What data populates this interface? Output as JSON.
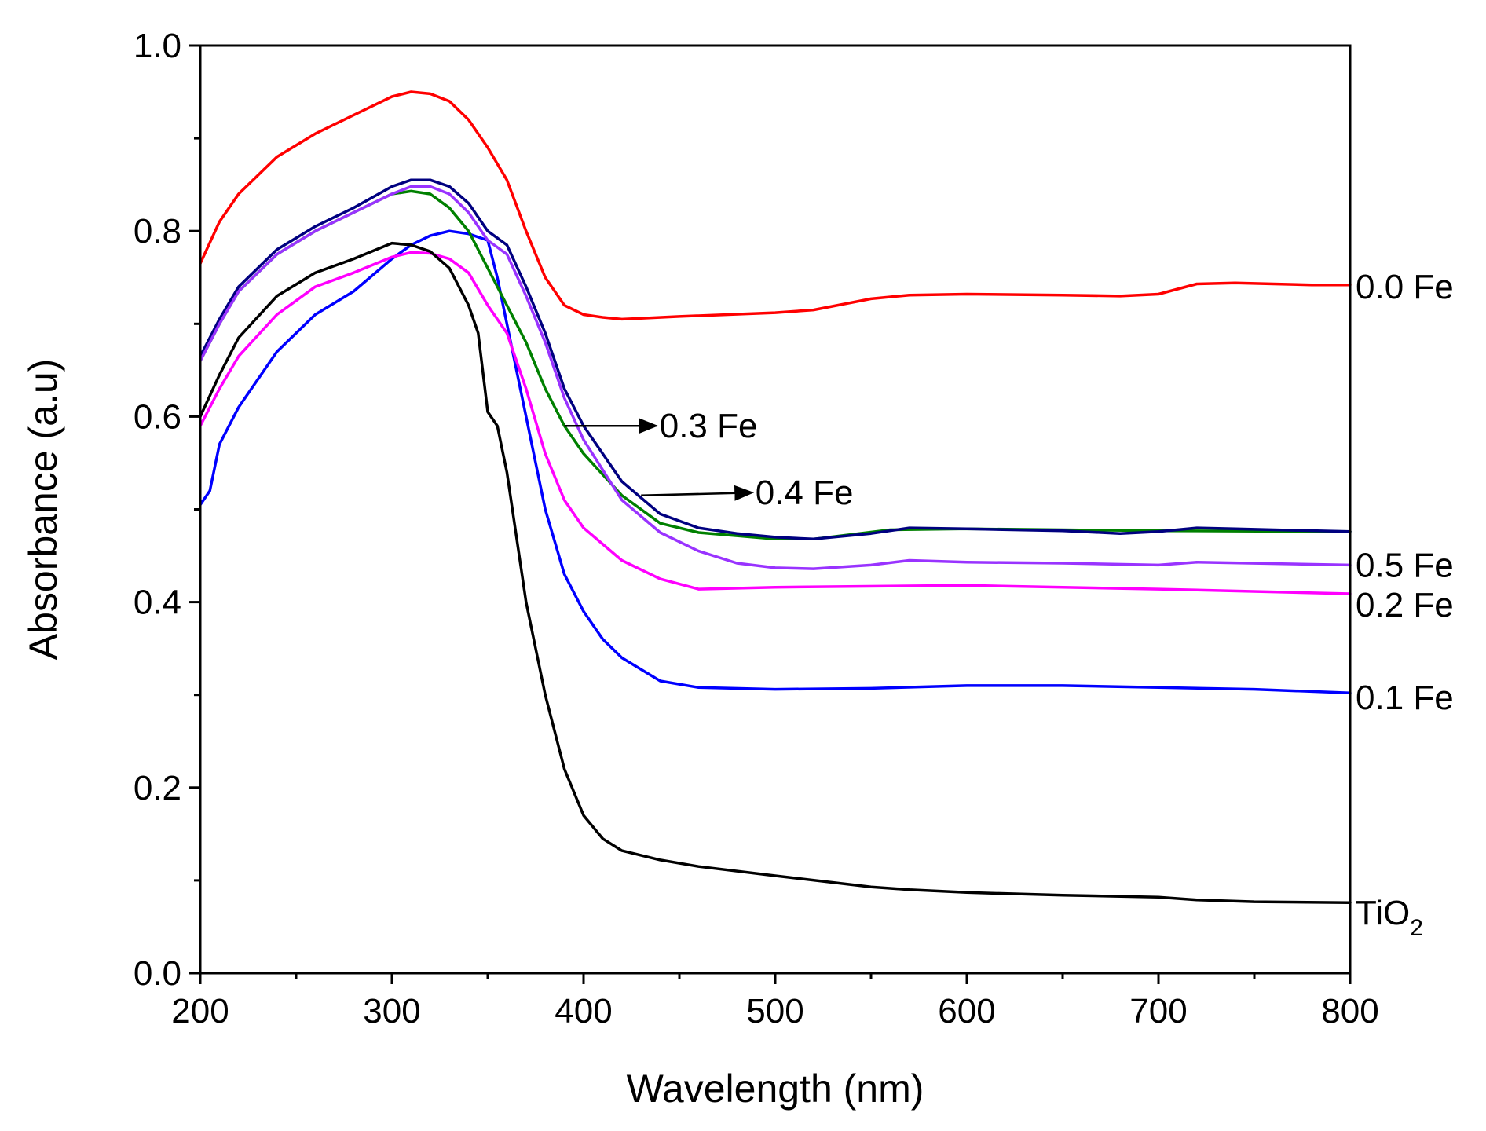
{
  "chart_data": {
    "type": "line",
    "title": "",
    "xlabel": "Wavelength (nm)",
    "ylabel": "Absorbance (a.u)",
    "xlim": [
      200,
      800
    ],
    "ylim": [
      0.0,
      1.0
    ],
    "x_ticks": [
      200,
      300,
      400,
      500,
      600,
      700,
      800
    ],
    "x_tick_labels": [
      "200",
      "300",
      "400",
      "500",
      "600",
      "700",
      "800"
    ],
    "y_ticks": [
      0.0,
      0.2,
      0.4,
      0.6,
      0.8,
      1.0
    ],
    "y_tick_labels": [
      "0.0",
      "0.2",
      "0.4",
      "0.6",
      "0.8",
      "1.0"
    ],
    "grid": false,
    "series": [
      {
        "name": "0.0 Fe",
        "color": "#ff0000",
        "x": [
          200,
          210,
          220,
          240,
          260,
          280,
          300,
          310,
          320,
          330,
          340,
          350,
          360,
          370,
          380,
          390,
          400,
          410,
          420,
          430,
          450,
          500,
          520,
          550,
          570,
          600,
          650,
          680,
          700,
          720,
          740,
          760,
          780,
          800
        ],
        "values": [
          0.765,
          0.81,
          0.84,
          0.88,
          0.905,
          0.925,
          0.945,
          0.95,
          0.948,
          0.94,
          0.92,
          0.89,
          0.855,
          0.8,
          0.75,
          0.72,
          0.71,
          0.707,
          0.705,
          0.706,
          0.708,
          0.712,
          0.715,
          0.727,
          0.731,
          0.732,
          0.731,
          0.73,
          0.732,
          0.743,
          0.744,
          0.743,
          0.742,
          0.742
        ]
      },
      {
        "name": "0.1 Fe",
        "color": "#0000ff",
        "x": [
          200,
          205,
          210,
          220,
          240,
          260,
          280,
          300,
          310,
          320,
          330,
          340,
          350,
          355,
          360,
          370,
          380,
          390,
          400,
          410,
          420,
          440,
          460,
          500,
          550,
          600,
          650,
          700,
          750,
          800
        ],
        "values": [
          0.505,
          0.52,
          0.57,
          0.61,
          0.67,
          0.71,
          0.735,
          0.77,
          0.785,
          0.795,
          0.8,
          0.797,
          0.79,
          0.75,
          0.7,
          0.6,
          0.5,
          0.43,
          0.39,
          0.36,
          0.34,
          0.315,
          0.308,
          0.306,
          0.307,
          0.31,
          0.31,
          0.308,
          0.306,
          0.302
        ]
      },
      {
        "name": "0.2 Fe",
        "color": "#ff00ff",
        "x": [
          200,
          210,
          220,
          240,
          260,
          280,
          300,
          310,
          320,
          330,
          340,
          350,
          360,
          370,
          380,
          390,
          400,
          420,
          440,
          460,
          500,
          600,
          700,
          800
        ],
        "values": [
          0.59,
          0.63,
          0.665,
          0.71,
          0.74,
          0.755,
          0.772,
          0.777,
          0.776,
          0.77,
          0.755,
          0.72,
          0.69,
          0.63,
          0.56,
          0.51,
          0.48,
          0.445,
          0.425,
          0.414,
          0.416,
          0.418,
          0.414,
          0.409
        ]
      },
      {
        "name": "0.3 Fe",
        "color": "#008000",
        "x": [
          200,
          210,
          220,
          240,
          260,
          280,
          300,
          310,
          320,
          330,
          340,
          350,
          360,
          370,
          380,
          390,
          400,
          420,
          440,
          460,
          500,
          520,
          560,
          600,
          700,
          800
        ],
        "values": [
          0.66,
          0.7,
          0.735,
          0.775,
          0.8,
          0.82,
          0.84,
          0.843,
          0.84,
          0.825,
          0.8,
          0.76,
          0.72,
          0.68,
          0.63,
          0.59,
          0.56,
          0.515,
          0.485,
          0.475,
          0.468,
          0.468,
          0.478,
          0.479,
          0.477,
          0.476
        ]
      },
      {
        "name": "0.4 Fe",
        "color": "#000080",
        "x": [
          200,
          210,
          220,
          240,
          260,
          280,
          300,
          310,
          320,
          330,
          340,
          350,
          360,
          370,
          380,
          390,
          400,
          420,
          440,
          460,
          480,
          500,
          520,
          550,
          570,
          600,
          650,
          680,
          700,
          720,
          740,
          800
        ],
        "values": [
          0.665,
          0.705,
          0.74,
          0.78,
          0.805,
          0.825,
          0.848,
          0.855,
          0.855,
          0.848,
          0.83,
          0.8,
          0.785,
          0.74,
          0.69,
          0.63,
          0.59,
          0.53,
          0.495,
          0.48,
          0.474,
          0.47,
          0.468,
          0.474,
          0.48,
          0.479,
          0.477,
          0.474,
          0.476,
          0.48,
          0.479,
          0.476
        ]
      },
      {
        "name": "0.5 Fe",
        "color": "#9933ff",
        "x": [
          200,
          210,
          220,
          240,
          260,
          280,
          300,
          310,
          320,
          330,
          340,
          350,
          360,
          370,
          380,
          390,
          400,
          420,
          440,
          460,
          480,
          500,
          520,
          550,
          570,
          600,
          650,
          700,
          720,
          800
        ],
        "values": [
          0.66,
          0.7,
          0.735,
          0.775,
          0.8,
          0.82,
          0.84,
          0.848,
          0.848,
          0.84,
          0.82,
          0.79,
          0.775,
          0.73,
          0.68,
          0.62,
          0.575,
          0.51,
          0.475,
          0.455,
          0.442,
          0.437,
          0.436,
          0.44,
          0.445,
          0.443,
          0.442,
          0.44,
          0.443,
          0.44
        ]
      },
      {
        "name": "TiO2",
        "color": "#000000",
        "x": [
          200,
          210,
          220,
          240,
          260,
          280,
          300,
          310,
          320,
          330,
          340,
          345,
          350,
          355,
          360,
          365,
          370,
          380,
          390,
          400,
          410,
          420,
          440,
          460,
          500,
          550,
          570,
          600,
          650,
          700,
          720,
          750,
          800
        ],
        "values": [
          0.6,
          0.645,
          0.685,
          0.73,
          0.755,
          0.77,
          0.787,
          0.785,
          0.778,
          0.76,
          0.72,
          0.69,
          0.605,
          0.59,
          0.54,
          0.47,
          0.4,
          0.3,
          0.22,
          0.17,
          0.145,
          0.132,
          0.122,
          0.115,
          0.105,
          0.093,
          0.09,
          0.087,
          0.084,
          0.082,
          0.079,
          0.077,
          0.076
        ]
      }
    ],
    "annotations": [
      {
        "text": "0.3 Fe",
        "arrow_from": [
          390,
          0.59
        ],
        "arrow_to": [
          438,
          0.59
        ]
      },
      {
        "text": "0.4 Fe",
        "arrow_from": [
          430,
          0.515
        ],
        "arrow_to": [
          488,
          0.518
        ]
      }
    ],
    "end_labels": [
      {
        "series": "0.0 Fe",
        "text": "0.0 Fe",
        "at_value": 0.74
      },
      {
        "series": "0.5 Fe",
        "text": "0.5 Fe",
        "at_value": 0.44
      },
      {
        "series": "0.2 Fe",
        "text": "0.2 Fe",
        "at_value": 0.397
      },
      {
        "series": "0.1 Fe",
        "text": "0.1 Fe",
        "at_value": 0.297
      },
      {
        "series": "TiO2",
        "text_main": "TiO",
        "text_sub": "2",
        "at_value": 0.065
      }
    ]
  }
}
